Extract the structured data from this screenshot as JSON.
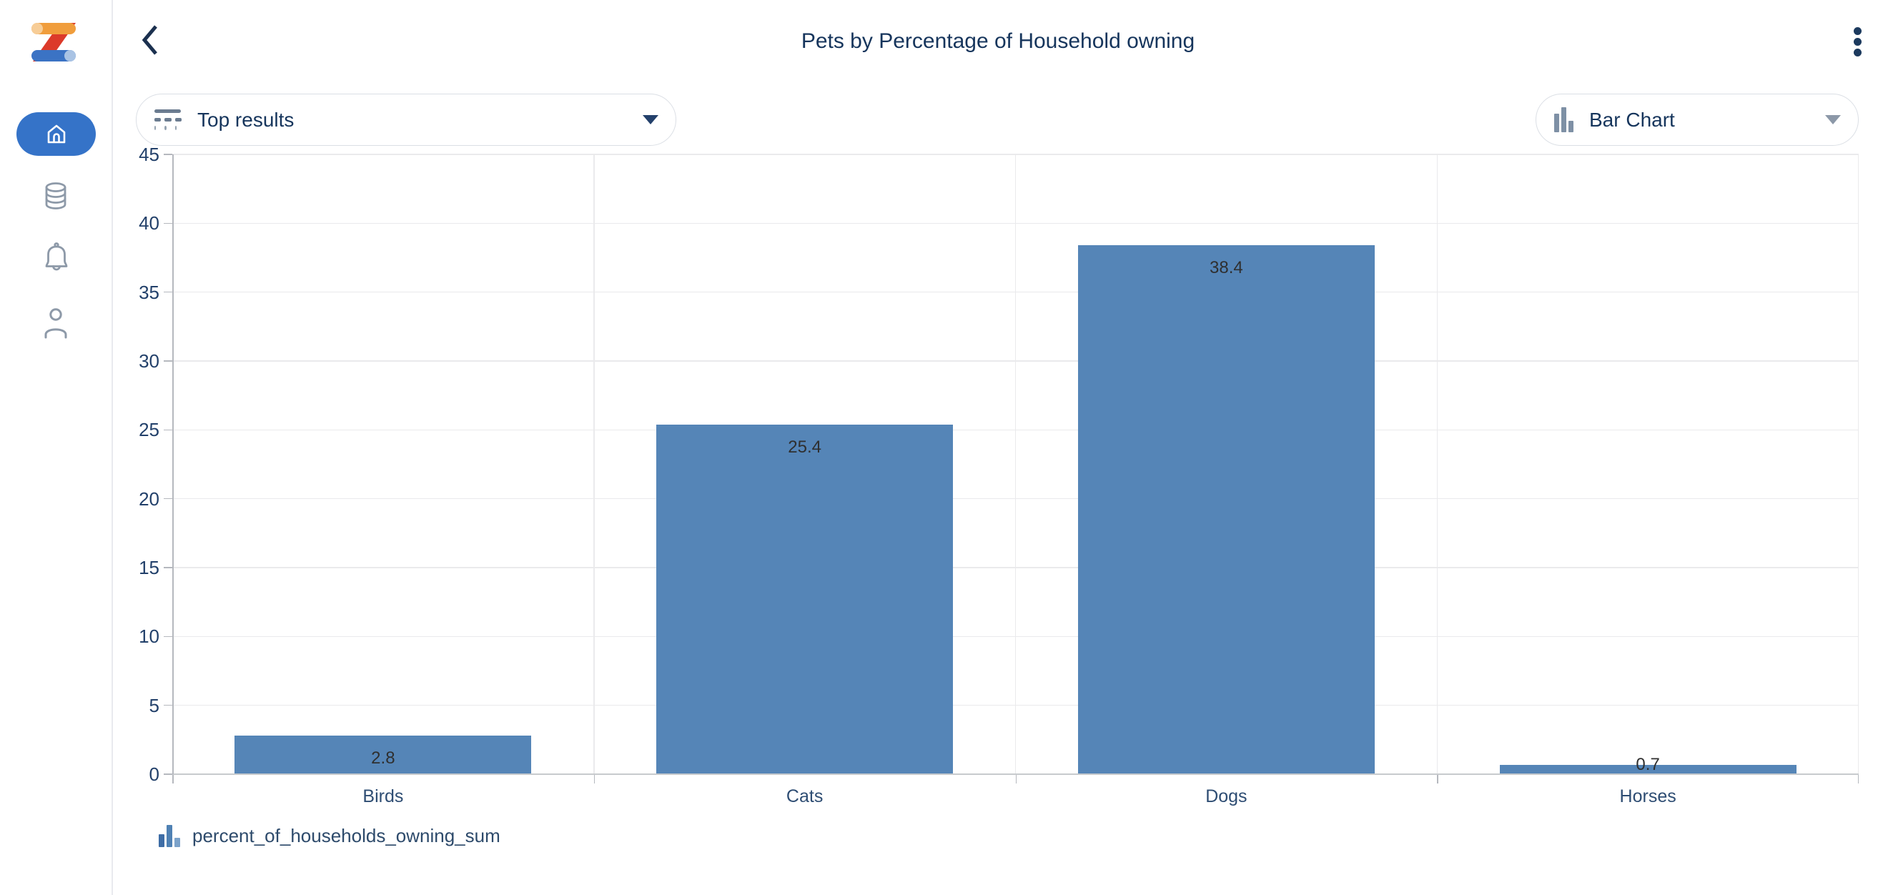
{
  "header": {
    "title": "Pets by Percentage of Household owning"
  },
  "sidebar": {
    "logo_icon": "z-logo",
    "items": [
      {
        "icon": "home-icon",
        "active": true
      },
      {
        "icon": "database-icon",
        "active": false
      },
      {
        "icon": "bell-icon",
        "active": false
      },
      {
        "icon": "person-icon",
        "active": false
      }
    ]
  },
  "toolbar": {
    "top_results": {
      "label": "Top results",
      "icon": "top-results-filter-icon"
    },
    "chart_type": {
      "label": "Bar Chart",
      "icon": "bar-chart-icon"
    }
  },
  "chart_data": {
    "type": "bar",
    "title": "Pets by Percentage of Household owning",
    "categories": [
      "Birds",
      "Cats",
      "Dogs",
      "Horses"
    ],
    "values": [
      2.8,
      25.4,
      38.4,
      0.7
    ],
    "value_labels": [
      "2.8",
      "25.4",
      "38.4",
      "0.7"
    ],
    "series": [
      {
        "name": "percent_of_households_owning_sum",
        "values": [
          2.8,
          25.4,
          38.4,
          0.7
        ]
      }
    ],
    "xlabel": "",
    "ylabel": "",
    "ylim": [
      0,
      45
    ],
    "yticks": [
      0,
      5,
      10,
      15,
      20,
      25,
      30,
      35,
      40,
      45
    ],
    "grid": true,
    "legend_position": "bottom-left",
    "bar_color": "#5585b7"
  },
  "legend": {
    "items": [
      {
        "label": "percent_of_households_owning_sum",
        "colors": [
          "#3e6da6",
          "#4f81b4",
          "#7ba2ca"
        ]
      }
    ]
  },
  "colors": {
    "accent_blue": "#3573c8",
    "navy": "#16355c",
    "bar": "#5585b7",
    "icon_gray": "#8d99a8"
  }
}
